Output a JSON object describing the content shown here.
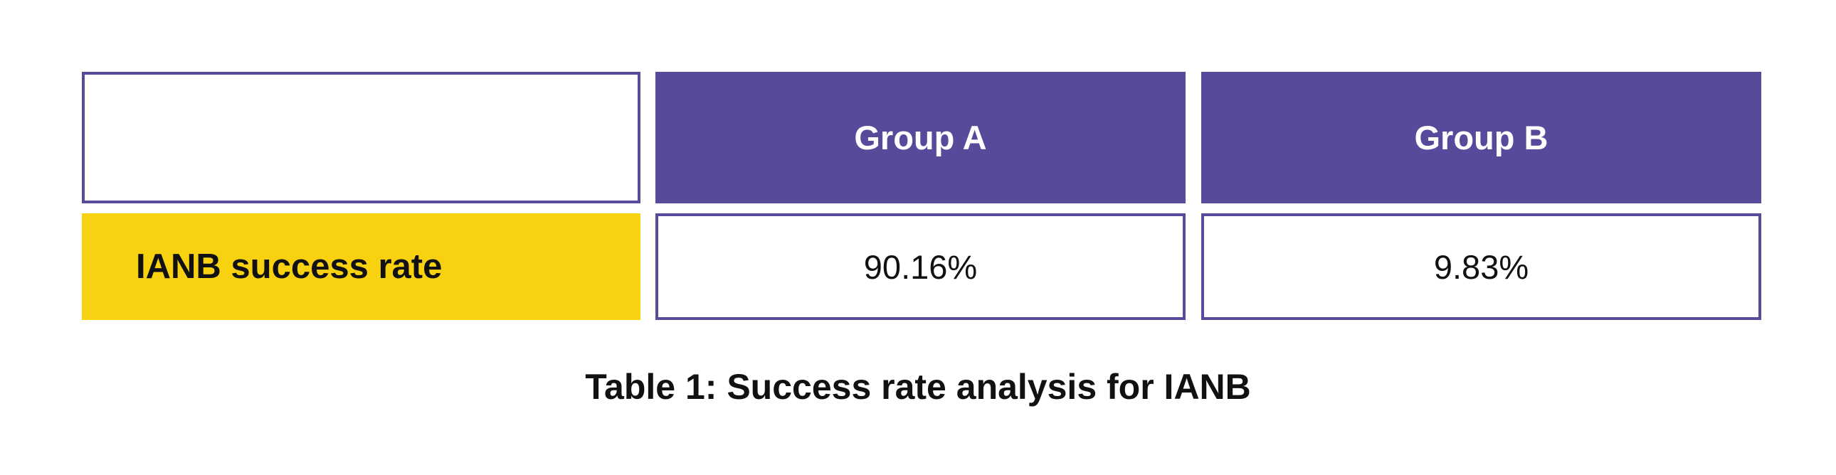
{
  "chart_data": {
    "type": "table",
    "columns": [
      "",
      "Group A",
      "Group B"
    ],
    "rows": [
      {
        "label": "IANB success rate",
        "values": [
          "90.16%",
          "9.83%"
        ]
      }
    ],
    "caption": "Table 1: Success rate analysis for IANB"
  },
  "colors": {
    "header_fill": "#574a9a",
    "border": "#574a9a",
    "row_label_fill": "#f8d210",
    "text": "#111111",
    "header_text": "#ffffff"
  }
}
